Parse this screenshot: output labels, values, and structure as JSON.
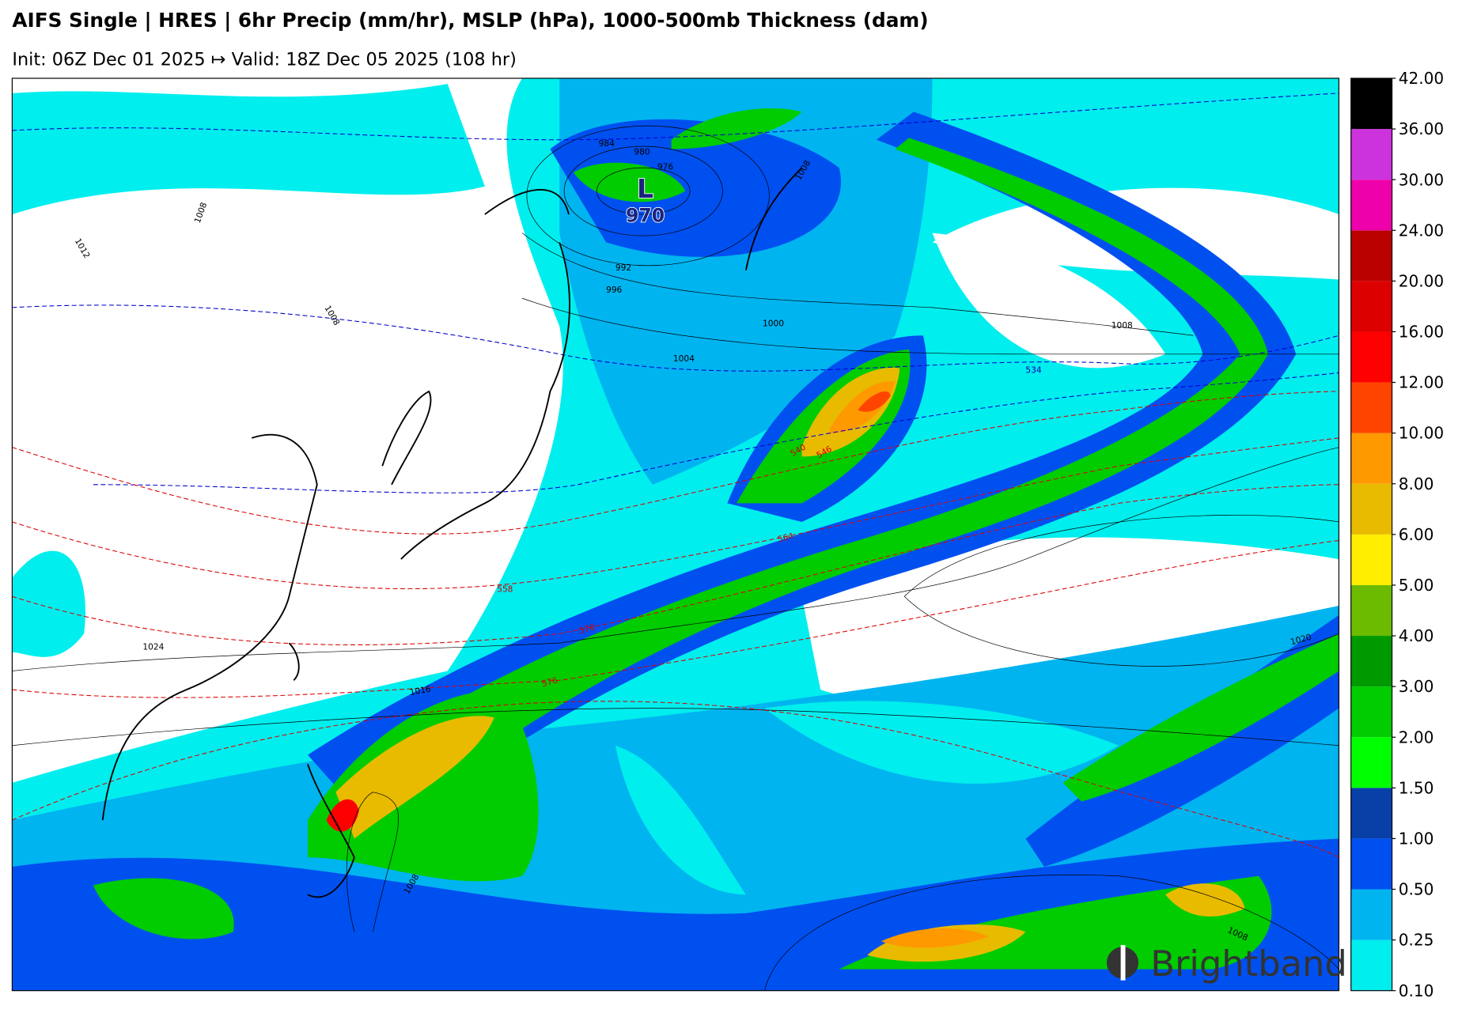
{
  "header": {
    "title": "AIFS Single | HRES | 6hr Precip (mm/hr), MSLP (hPa), 1000-500mb Thickness (dam)",
    "subtitle": "Init: 06Z Dec 01 2025 ↦ Valid: 18Z Dec 05 2025 (108 hr)"
  },
  "map": {
    "low": {
      "symbol": "L",
      "pressure": "970"
    },
    "isobar_labels": [
      "984",
      "980",
      "976",
      "992",
      "996",
      "1000",
      "1004",
      "1008",
      "1008",
      "1012",
      "1008",
      "1024",
      "1016",
      "1008",
      "1020",
      "1008",
      "1008"
    ],
    "thickness_labels": [
      "534",
      "540",
      "546",
      "558",
      "564",
      "570",
      "576"
    ],
    "brand": "Brightband"
  },
  "colorbar": {
    "ticks": [
      {
        "value": 0.1,
        "label": "0.10"
      },
      {
        "value": 0.25,
        "label": "0.25"
      },
      {
        "value": 0.5,
        "label": "0.50"
      },
      {
        "value": 1,
        "label": "1.00"
      },
      {
        "value": 1.5,
        "label": "1.50"
      },
      {
        "value": 2,
        "label": "2.00"
      },
      {
        "value": 3,
        "label": "3.00"
      },
      {
        "value": 4,
        "label": "4.00"
      },
      {
        "value": 5,
        "label": "5.00"
      },
      {
        "value": 6,
        "label": "6.00"
      },
      {
        "value": 8,
        "label": "8.00"
      },
      {
        "value": 10,
        "label": "10.00"
      },
      {
        "value": 12,
        "label": "12.00"
      },
      {
        "value": 16,
        "label": "16.00"
      },
      {
        "value": 20,
        "label": "20.00"
      },
      {
        "value": 24,
        "label": "24.00"
      },
      {
        "value": 30,
        "label": "30.00"
      },
      {
        "value": 36,
        "label": "36.00"
      },
      {
        "value": 42,
        "label": "42.00"
      }
    ],
    "colors": [
      "#00eeee",
      "#00b4f0",
      "#0050f0",
      "#0840a8",
      "#00ff00",
      "#00cc00",
      "#009900",
      "#6cbb00",
      "#ffee00",
      "#e8bb00",
      "#ff9900",
      "#ff4400",
      "#ff0000",
      "#dd0000",
      "#bb0000",
      "#ee00aa",
      "#cc33dd",
      "#000000"
    ]
  }
}
